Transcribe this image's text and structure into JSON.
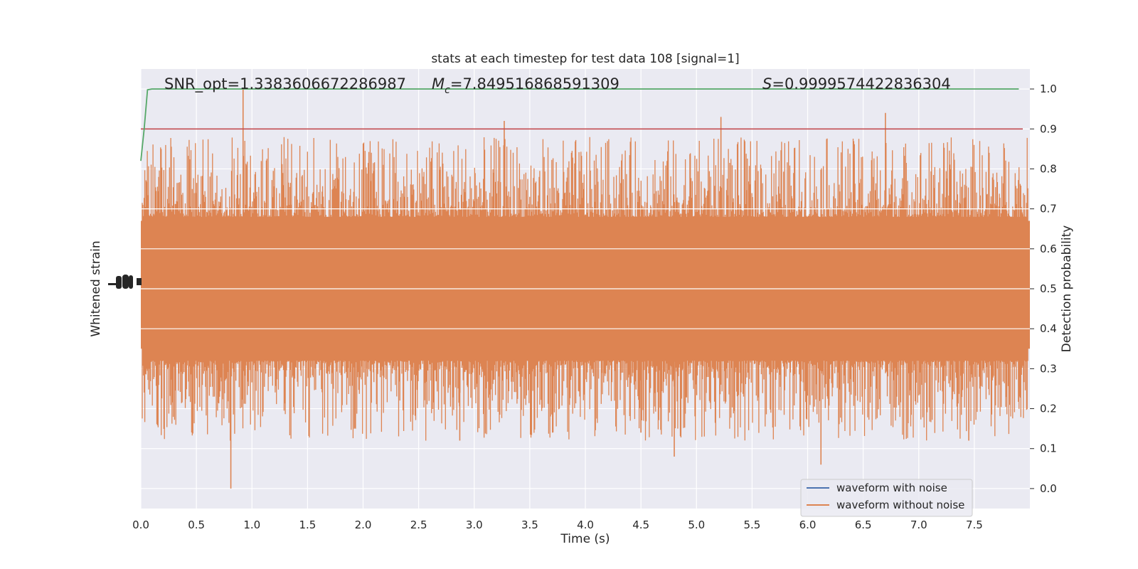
{
  "chart_data": {
    "type": "line",
    "title": "stats at each timestep for test data 108 [signal=1]",
    "xlabel": "Time (s)",
    "ylabel_left": "Whitened strain",
    "ylabel_right": "Detection probability",
    "xlim": [
      0.0,
      8.0
    ],
    "ylim_right": [
      -0.05,
      1.05
    ],
    "x_ticks": [
      "0.0",
      "0.5",
      "1.0",
      "1.5",
      "2.0",
      "2.5",
      "3.0",
      "3.5",
      "4.0",
      "4.5",
      "5.0",
      "5.5",
      "6.0",
      "6.5",
      "7.0",
      "7.5"
    ],
    "y_ticks_right": [
      "0.0",
      "0.1",
      "0.2",
      "0.3",
      "0.4",
      "0.5",
      "0.6",
      "0.7",
      "0.8",
      "0.9",
      "1.0"
    ],
    "grid": true,
    "legend_position": "lower-right",
    "annotations": {
      "snr": "SNR_opt=1.3383606672286987",
      "mc_symbol": "M",
      "mc_subscript": "c",
      "mc_value": "=7.849516868591309",
      "s_symbol": "S",
      "s_value": "=0.9999574422836304"
    },
    "series": [
      {
        "name": "waveform with noise",
        "color": "#4c72b0",
        "note_visible": "hidden behind orange trace"
      },
      {
        "name": "waveform without noise",
        "color": "#dd8452",
        "kind": "dense oscillating strain centered at 0.5, range approx 0.0 to 1.0"
      },
      {
        "color": "#55a868",
        "kind": "detection probability",
        "x": [
          0.0,
          0.03,
          0.06,
          0.1,
          0.5,
          1.0,
          2.0,
          4.0,
          6.0,
          7.9
        ],
        "y": [
          0.82,
          0.9,
          0.998,
          1.0,
          1.0,
          1.0,
          1.0,
          1.0,
          1.0,
          1.0
        ]
      },
      {
        "color": "#c44e52",
        "kind": "threshold",
        "y": 0.9
      }
    ]
  }
}
